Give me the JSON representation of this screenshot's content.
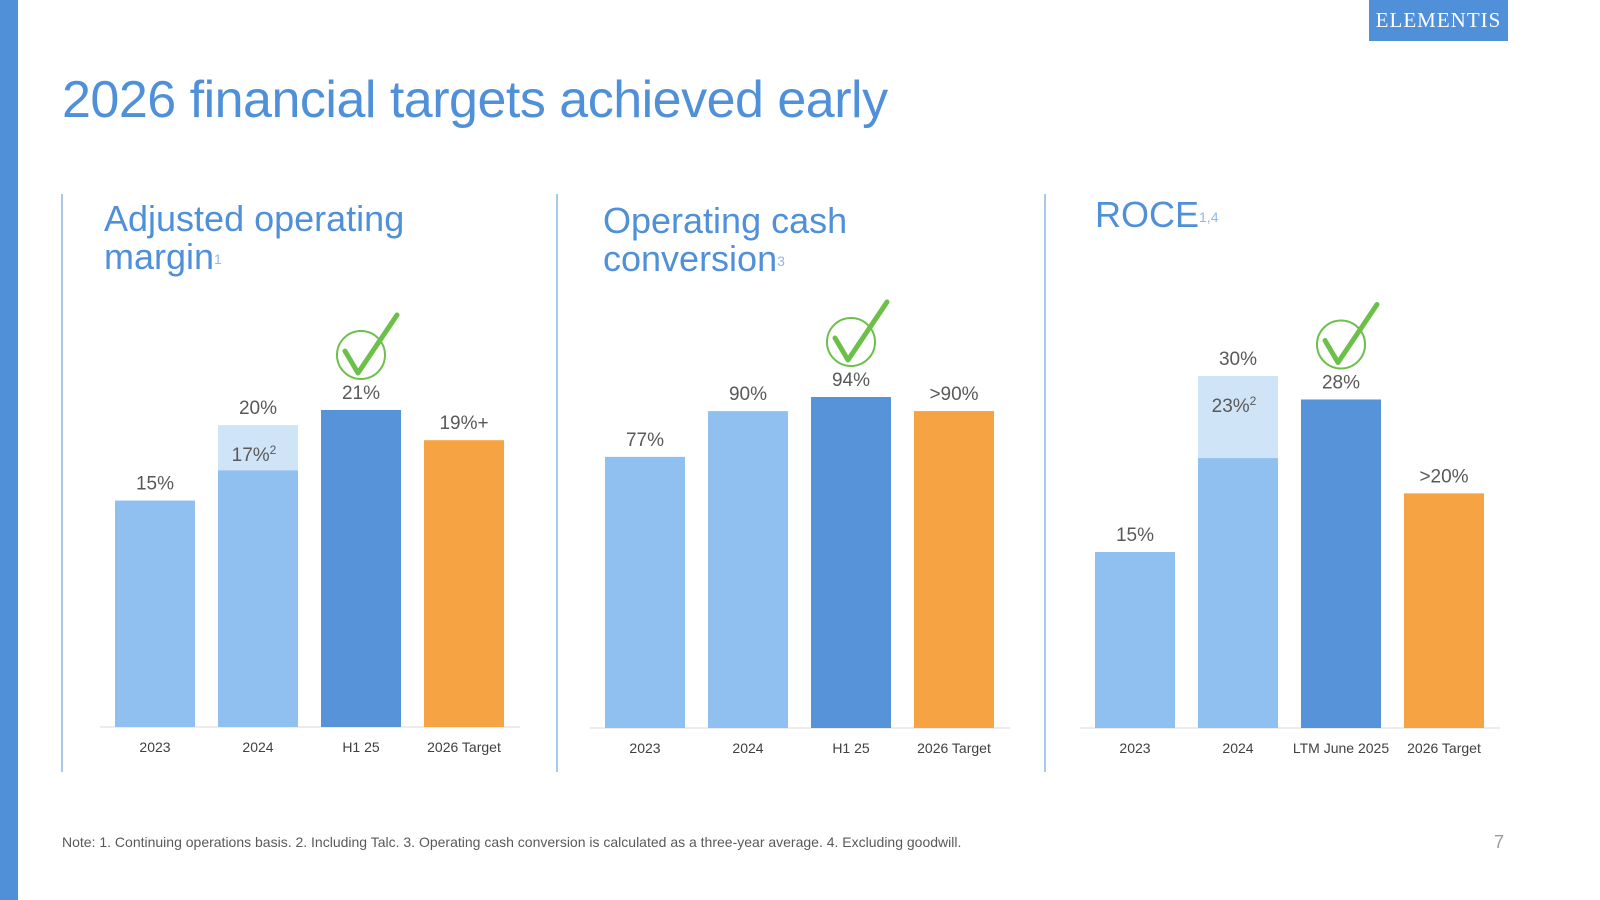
{
  "title": "2026 financial targets achieved early",
  "logo": "ELEMENTIS",
  "colors": {
    "accent": "#4f90d9",
    "bar_light": "#90c0f0",
    "bar_segment": "#d0e4f7",
    "bar_dark": "#5793d9",
    "bar_target": "#f5a343",
    "check": "#6cc04a"
  },
  "panels": [
    {
      "title_lines": [
        "Adjusted operating",
        "margin"
      ],
      "title_sup": "1"
    },
    {
      "title_lines": [
        "Operating cash",
        "conversion"
      ],
      "title_sup": "3"
    },
    {
      "title_lines": [
        "ROCE"
      ],
      "title_sup": "1,4"
    }
  ],
  "chart_data": [
    {
      "type": "bar",
      "title": "Adjusted operating margin",
      "categories": [
        "2023",
        "2024",
        "H1 25",
        "2026 Target"
      ],
      "values": [
        15,
        20,
        21,
        19
      ],
      "segment_values": [
        null,
        17,
        null,
        null
      ],
      "value_labels": [
        "15%",
        "20%",
        "21%",
        "19%+"
      ],
      "segment_labels": [
        null,
        "17%",
        null,
        null
      ],
      "segment_sup": [
        null,
        "2",
        null,
        null
      ],
      "bar_styles": [
        "light",
        "light",
        "dark",
        "target"
      ],
      "checkmark_index": 2,
      "ylim": [
        0,
        21
      ]
    },
    {
      "type": "bar",
      "title": "Operating cash conversion",
      "categories": [
        "2023",
        "2024",
        "H1 25",
        "2026 Target"
      ],
      "values": [
        77,
        90,
        94,
        90
      ],
      "segment_values": [
        null,
        null,
        null,
        null
      ],
      "value_labels": [
        "77%",
        "90%",
        "94%",
        ">90%"
      ],
      "segment_labels": [
        null,
        null,
        null,
        null
      ],
      "segment_sup": [
        null,
        null,
        null,
        null
      ],
      "bar_styles": [
        "light",
        "light",
        "dark",
        "target"
      ],
      "checkmark_index": 2,
      "ylim": [
        0,
        94
      ]
    },
    {
      "type": "bar",
      "title": "ROCE",
      "categories": [
        "2023",
        "2024",
        "LTM June 2025",
        "2026 Target"
      ],
      "values": [
        15,
        30,
        28,
        20
      ],
      "segment_values": [
        null,
        23,
        null,
        null
      ],
      "value_labels": [
        "15%",
        "30%",
        "28%",
        ">20%"
      ],
      "segment_labels": [
        null,
        "23%",
        null,
        null
      ],
      "segment_sup": [
        null,
        "2",
        null,
        null
      ],
      "bar_styles": [
        "light",
        "light",
        "dark",
        "target"
      ],
      "checkmark_index": 2,
      "ylim": [
        0,
        30
      ]
    }
  ],
  "footer": {
    "note": "Note: 1. Continuing operations basis. 2. Including Talc. 3. Operating cash conversion is calculated as a three-year average. 4. Excluding goodwill.",
    "page_number": "7"
  }
}
